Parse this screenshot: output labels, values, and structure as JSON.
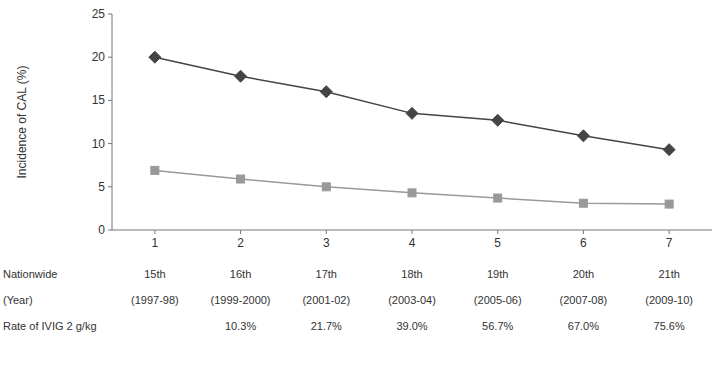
{
  "chart_data": {
    "type": "line",
    "ylabel": "Incidence of CAL (%)",
    "x": [
      1,
      2,
      3,
      4,
      5,
      6,
      7
    ],
    "series": [
      {
        "color": "#444444",
        "marker": "diamond",
        "line_style": "solid",
        "values": [
          20.0,
          17.8,
          16.0,
          13.5,
          12.7,
          10.9,
          9.3
        ]
      },
      {
        "color": "#999999",
        "marker": "square",
        "line_style": "solid",
        "values": [
          6.9,
          5.9,
          5.0,
          4.3,
          3.7,
          3.1,
          3.0
        ]
      }
    ],
    "xlim": [
      0.5,
      7.5
    ],
    "xticks": [
      1,
      2,
      3,
      4,
      5,
      6,
      7
    ],
    "ylim": [
      0,
      25
    ],
    "yticks": [
      0,
      5,
      10,
      15,
      20,
      25
    ],
    "grid": false,
    "table_rows": [
      {
        "label": "Nationwide",
        "labels": [
          "15th",
          "16th",
          "17th",
          "18th",
          "19th",
          "20th",
          "21th"
        ]
      },
      {
        "label": "(Year)",
        "labels": [
          "(1997-98)",
          "(1999-2000)",
          "(2001-02)",
          "(2003-04)",
          "(2005-06)",
          "(2007-08)",
          "(2009-10)"
        ]
      },
      {
        "label": "Rate of IVIG 2 g/kg",
        "labels": [
          null,
          "10.3%",
          "21.7%",
          "39.0%",
          "56.7%",
          "67.0%",
          "75.6%"
        ]
      }
    ]
  }
}
